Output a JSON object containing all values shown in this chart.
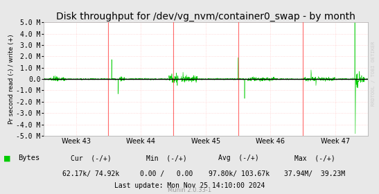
{
  "title": "Disk throughput for /dev/vg_nvm/container0_swap - by month",
  "ylabel": "Pr second read (-) / write (+)",
  "bg_color": "#e8e8e8",
  "plot_bg_color": "#ffffff",
  "line_color": "#00cc00",
  "ylim": [
    -5000000,
    5000000
  ],
  "yticks": [
    -5000000,
    -4000000,
    -3000000,
    -2000000,
    -1000000,
    0,
    1000000,
    2000000,
    3000000,
    4000000,
    5000000
  ],
  "ytick_labels": [
    "-5.0 M",
    "-4.0 M",
    "-3.0 M",
    "-2.0 M",
    "-1.0 M",
    "0.0",
    "1.0 M",
    "2.0 M",
    "3.0 M",
    "4.0 M",
    "5.0 M"
  ],
  "week_labels": [
    "Week 43",
    "Week 44",
    "Week 45",
    "Week 46",
    "Week 47"
  ],
  "title_fontsize": 10,
  "tick_fontsize": 7,
  "legend_label": "Bytes",
  "cur_neg": "62.17k",
  "cur_pos": "74.92k",
  "min_neg": "0.00",
  "min_pos": "0.00",
  "avg_neg": "97.80k",
  "avg_pos": "103.67k",
  "max_neg": "37.94M",
  "max_pos": "39.23M",
  "last_update": "Last update: Mon Nov 25 14:10:00 2024",
  "munin_version": "Munin 2.0.33-1",
  "right_label": "RRDTOOL / TOBI OETIKER",
  "vline_color": "#ff4444",
  "grid_color": "#ffcccc",
  "zero_line_color": "#000000"
}
